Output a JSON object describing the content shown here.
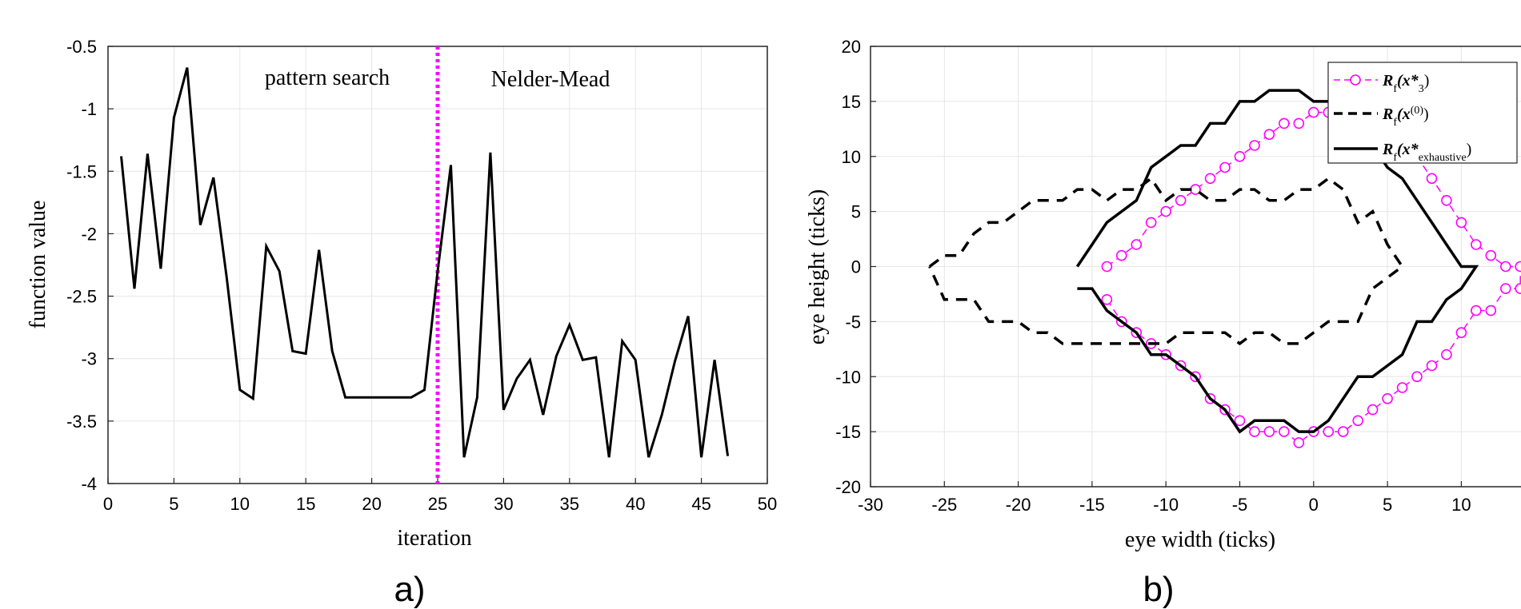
{
  "chart_data": [
    {
      "type": "line",
      "caption": "a)",
      "xlabel": "iteration",
      "ylabel": "function value",
      "xlim": [
        0,
        50
      ],
      "ylim": [
        -4,
        -0.5
      ],
      "xticks": [
        "0",
        "5",
        "10",
        "15",
        "20",
        "25",
        "30",
        "35",
        "40",
        "45",
        "50"
      ],
      "yticks": [
        "-0.5",
        "-1",
        "-1.5",
        "-2",
        "-2.5",
        "-3",
        "-3.5",
        "-4"
      ],
      "grid": true,
      "annotations": {
        "left": "pattern search",
        "right": "Nelder-Mead"
      },
      "divider_x": 25,
      "colors": {
        "line": "#000000",
        "divider": "#ff00ff",
        "grid": "#e6e6e6"
      },
      "series": [
        {
          "x": [
            1,
            2,
            3,
            4,
            5,
            6,
            7,
            8,
            9,
            10,
            11,
            12,
            13,
            14,
            15,
            16,
            17,
            18,
            19,
            20,
            21,
            22,
            23,
            24,
            25,
            26,
            27,
            28,
            29,
            30,
            31,
            32,
            33,
            34,
            35,
            36,
            37,
            38,
            39,
            40,
            41,
            42,
            43,
            44,
            45,
            46,
            47
          ],
          "y": [
            -1.38,
            -2.44,
            -1.36,
            -2.28,
            -1.07,
            -0.67,
            -1.93,
            -1.55,
            -2.35,
            -3.25,
            -3.32,
            -2.1,
            -2.3,
            -2.94,
            -2.96,
            -2.13,
            -2.94,
            -3.31,
            -3.31,
            -3.31,
            -3.31,
            -3.31,
            -3.31,
            -3.25,
            -2.3,
            -1.45,
            -3.79,
            -3.31,
            -1.35,
            -3.41,
            -3.16,
            -3.01,
            -3.45,
            -2.98,
            -2.73,
            -3.01,
            -2.99,
            -3.79,
            -2.86,
            -3.01,
            -3.79,
            -3.45,
            -3.02,
            -2.66,
            -3.79,
            -3.01,
            -3.78
          ]
        }
      ]
    },
    {
      "type": "line",
      "caption": "b)",
      "xlabel": "eye width  (ticks)",
      "ylabel": "eye height  (ticks)",
      "xlim": [
        -30,
        15
      ],
      "ylim": [
        -20,
        20
      ],
      "xticks": [
        "-30",
        "-25",
        "-20",
        "-15",
        "-10",
        "-5",
        "0",
        "5",
        "10"
      ],
      "yticks": [
        "20",
        "15",
        "10",
        "5",
        "0",
        "-5",
        "-10",
        "-15",
        "-20"
      ],
      "grid": true,
      "legend_position": "top-right",
      "series": [
        {
          "name_main": "R",
          "name_sub": "f",
          "name_open": "(x*",
          "name_arg_sub": "3",
          "name_close": ")",
          "style": "dashed-circle",
          "color": "#ff00ff",
          "x": [
            -14,
            -13,
            -12,
            -11,
            -10,
            -9,
            -8,
            -7,
            -6,
            -5,
            -4,
            -3,
            -2,
            -1,
            0,
            1,
            2,
            3,
            4,
            5,
            6,
            7,
            8,
            9,
            10,
            11,
            12,
            13,
            14,
            14,
            13,
            12,
            11,
            10,
            9,
            8,
            7,
            6,
            5,
            4,
            3,
            2,
            1,
            0,
            -1,
            -2,
            -3,
            -4,
            -5,
            -6,
            -7,
            -8,
            -9,
            -10,
            -11,
            -12,
            -13,
            -14
          ],
          "y": [
            0,
            1,
            2,
            4,
            5,
            6,
            7,
            8,
            9,
            10,
            11,
            12,
            13,
            13,
            14,
            14,
            14,
            14,
            14,
            13,
            12,
            10,
            8,
            6,
            4,
            2,
            1,
            0,
            0,
            -2,
            -2,
            -4,
            -4,
            -6,
            -8,
            -9,
            -10,
            -11,
            -12,
            -13,
            -14,
            -15,
            -15,
            -15,
            -16,
            -15,
            -15,
            -15,
            -14,
            -13,
            -12,
            -10,
            -9,
            -8,
            -7,
            -6,
            -5,
            -3
          ]
        },
        {
          "name_main": "R",
          "name_sub": "f",
          "name_open": "(x",
          "name_sup": "(0)",
          "name_close": ")",
          "style": "dashed",
          "color": "#000000",
          "x": [
            -26,
            -25,
            -24,
            -23,
            -22,
            -21,
            -20,
            -19,
            -18,
            -17,
            -16,
            -15,
            -14,
            -13,
            -12,
            -11,
            -10,
            -9,
            -8,
            -7,
            -6,
            -5,
            -4,
            -3,
            -2,
            -1,
            0,
            1,
            2,
            3,
            4,
            5,
            6,
            5,
            4,
            3,
            2,
            1,
            0,
            -1,
            -2,
            -3,
            -4,
            -5,
            -6,
            -7,
            -8,
            -9,
            -10,
            -11,
            -12,
            -13,
            -14,
            -15,
            -16,
            -17,
            -18,
            -19,
            -20,
            -21,
            -22,
            -23,
            -24,
            -25,
            -26
          ],
          "y": [
            0,
            1,
            1,
            3,
            4,
            4,
            5,
            6,
            6,
            6,
            7,
            7,
            6,
            7,
            7,
            8,
            6,
            7,
            7,
            6,
            6,
            7,
            7,
            6,
            6,
            7,
            7,
            8,
            7,
            4,
            5,
            2,
            0,
            -1,
            -2,
            -5,
            -5,
            -5,
            -6,
            -7,
            -7,
            -6,
            -6,
            -7,
            -6,
            -6,
            -6,
            -6,
            -7,
            -7,
            -7,
            -7,
            -7,
            -7,
            -7,
            -7,
            -6,
            -6,
            -5,
            -5,
            -5,
            -3,
            -3,
            -3,
            0
          ]
        },
        {
          "name_main": "R",
          "name_sub": "f",
          "name_open": "(x*",
          "name_arg_sub": "exhaustive",
          "name_close": ")",
          "style": "solid",
          "color": "#000000",
          "x": [
            -16,
            -15,
            -14,
            -13,
            -12,
            -11,
            -10,
            -9,
            -8,
            -7,
            -6,
            -5,
            -4,
            -3,
            -2,
            -1,
            0,
            1,
            2,
            3,
            4,
            5,
            6,
            7,
            8,
            9,
            10,
            11,
            10,
            9,
            8,
            7,
            6,
            5,
            4,
            3,
            2,
            1,
            0,
            -1,
            -2,
            -3,
            -4,
            -5,
            -6,
            -7,
            -8,
            -9,
            -10,
            -11,
            -12,
            -13,
            -14,
            -15,
            -16
          ],
          "y": [
            0,
            2,
            4,
            5,
            6,
            9,
            10,
            11,
            11,
            13,
            13,
            15,
            15,
            16,
            16,
            16,
            15,
            15,
            14,
            13,
            11,
            9,
            8,
            6,
            4,
            2,
            0,
            0,
            -2,
            -3,
            -5,
            -5,
            -8,
            -9,
            -10,
            -10,
            -12,
            -14,
            -15,
            -15,
            -14,
            -14,
            -14,
            -15,
            -13,
            -12,
            -10,
            -9,
            -8,
            -8,
            -6,
            -5,
            -4,
            -2,
            -2
          ]
        }
      ]
    }
  ]
}
